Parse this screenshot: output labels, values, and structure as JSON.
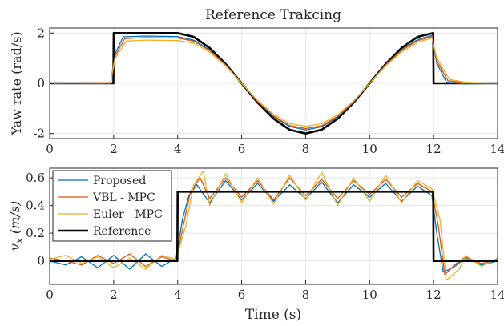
{
  "figure_title": "Reference Trakcing",
  "chart_data": [
    {
      "type": "line",
      "title": "Reference Trakcing",
      "xlabel": "",
      "ylabel": "Yaw rate (rad/s)",
      "xlim": [
        0,
        14
      ],
      "ylim": [
        -2.2,
        2.2
      ],
      "xticks": [
        0,
        2,
        4,
        6,
        8,
        10,
        12,
        14
      ],
      "yticks": [
        -2,
        0,
        2
      ],
      "grid": true,
      "legend": "none",
      "series": [
        {
          "name": "Reference",
          "color": "#000000",
          "x": [
            0,
            1.99,
            2.0,
            4.0,
            4.5,
            5.0,
            5.5,
            6.0,
            6.5,
            7.0,
            7.5,
            8.0,
            8.5,
            9.0,
            9.5,
            10.0,
            10.5,
            11.0,
            11.5,
            11.99,
            12.0,
            14.0
          ],
          "y": [
            0,
            0,
            2.0,
            2.0,
            1.85,
            1.41,
            0.77,
            0.0,
            -0.77,
            -1.41,
            -1.85,
            -2.0,
            -1.85,
            -1.41,
            -0.77,
            0.0,
            0.77,
            1.41,
            1.85,
            2.0,
            0,
            0
          ]
        },
        {
          "name": "Proposed",
          "color": "#0072BD",
          "x": [
            0,
            1.9,
            2.05,
            2.3,
            3.0,
            4.0,
            4.5,
            5.0,
            5.5,
            6.0,
            6.5,
            7.0,
            7.5,
            8.0,
            8.5,
            9.0,
            9.5,
            10.0,
            10.5,
            11.0,
            11.5,
            11.95,
            12.1,
            12.4,
            13.0,
            14.0
          ],
          "y": [
            0.02,
            -0.02,
            1.2,
            1.85,
            1.88,
            1.86,
            1.72,
            1.33,
            0.74,
            0.0,
            -0.73,
            -1.33,
            -1.72,
            -1.86,
            -1.73,
            -1.34,
            -0.75,
            0.0,
            0.74,
            1.33,
            1.74,
            1.9,
            0.8,
            0.05,
            -0.03,
            0.0
          ]
        },
        {
          "name": "VBL - MPC",
          "color": "#D95319",
          "x": [
            0,
            1.9,
            2.05,
            2.35,
            3.0,
            4.0,
            4.5,
            5.0,
            5.5,
            6.0,
            6.5,
            7.0,
            7.5,
            8.0,
            8.5,
            9.0,
            9.5,
            10.0,
            10.5,
            11.0,
            11.5,
            11.95,
            12.1,
            12.45,
            13.0,
            14.0
          ],
          "y": [
            0.0,
            0.03,
            1.1,
            1.78,
            1.82,
            1.8,
            1.68,
            1.3,
            0.72,
            0.0,
            -0.71,
            -1.3,
            -1.68,
            -1.8,
            -1.69,
            -1.31,
            -0.73,
            0.0,
            0.72,
            1.31,
            1.7,
            1.86,
            0.9,
            0.1,
            0.02,
            0.0
          ]
        },
        {
          "name": "Euler - MPC",
          "color": "#EDB120",
          "x": [
            0,
            1.9,
            2.05,
            2.4,
            3.0,
            4.0,
            4.5,
            5.0,
            5.5,
            6.0,
            6.5,
            7.0,
            7.5,
            8.0,
            8.5,
            9.0,
            9.5,
            10.0,
            10.5,
            11.0,
            11.5,
            11.95,
            12.1,
            12.5,
            13.0,
            14.0
          ],
          "y": [
            0.0,
            0.02,
            1.0,
            1.68,
            1.72,
            1.7,
            1.6,
            1.24,
            0.69,
            0.0,
            -0.68,
            -1.24,
            -1.6,
            -1.71,
            -1.61,
            -1.25,
            -0.7,
            0.0,
            0.69,
            1.25,
            1.63,
            1.8,
            1.0,
            0.15,
            0.04,
            0.0
          ]
        }
      ]
    },
    {
      "type": "line",
      "title": "",
      "xlabel": "Time (s)",
      "ylabel": "v_x (m/s)",
      "xlim": [
        0,
        14
      ],
      "ylim": [
        -0.17,
        0.67
      ],
      "xticks": [
        0,
        2,
        4,
        6,
        8,
        10,
        12,
        14
      ],
      "yticks": [
        0,
        0.2,
        0.4,
        0.6
      ],
      "grid": true,
      "legend": "top-left",
      "series": [
        {
          "name": "Proposed",
          "color": "#0072BD",
          "x": [
            0,
            0.5,
            1.0,
            1.5,
            2.0,
            2.5,
            3.0,
            3.5,
            3.95,
            4.15,
            4.35,
            4.6,
            5.0,
            5.5,
            6.0,
            6.5,
            7.0,
            7.5,
            8.0,
            8.5,
            9.0,
            9.5,
            10.0,
            10.5,
            11.0,
            11.5,
            11.95,
            12.1,
            12.3,
            12.6,
            13.0,
            13.5,
            14.0
          ],
          "y": [
            0.0,
            -0.03,
            0.03,
            -0.05,
            0.04,
            -0.06,
            0.05,
            -0.04,
            0.02,
            0.3,
            0.47,
            0.55,
            0.42,
            0.58,
            0.44,
            0.56,
            0.43,
            0.55,
            0.45,
            0.57,
            0.42,
            0.55,
            0.46,
            0.56,
            0.43,
            0.54,
            0.47,
            0.2,
            -0.08,
            -0.05,
            0.02,
            -0.03,
            0.0
          ]
        },
        {
          "name": "VBL - MPC",
          "color": "#D95319",
          "x": [
            0,
            0.5,
            1.0,
            1.5,
            2.0,
            2.5,
            3.0,
            3.5,
            3.95,
            4.2,
            4.4,
            4.7,
            5.0,
            5.5,
            6.0,
            6.5,
            7.0,
            7.5,
            8.0,
            8.5,
            9.0,
            9.5,
            10.0,
            10.5,
            11.0,
            11.5,
            11.95,
            12.15,
            12.35,
            12.7,
            13.0,
            13.5,
            14.0
          ],
          "y": [
            0.02,
            0.0,
            -0.03,
            0.04,
            -0.02,
            0.05,
            -0.04,
            0.03,
            0.0,
            0.28,
            0.5,
            0.6,
            0.45,
            0.6,
            0.46,
            0.58,
            0.44,
            0.6,
            0.47,
            0.59,
            0.45,
            0.58,
            0.48,
            0.59,
            0.46,
            0.56,
            0.5,
            0.25,
            -0.1,
            -0.02,
            0.03,
            -0.02,
            0.01
          ]
        },
        {
          "name": "Euler - MPC",
          "color": "#EDB120",
          "x": [
            0,
            0.5,
            1.0,
            1.5,
            2.0,
            2.5,
            3.0,
            3.5,
            3.95,
            4.25,
            4.5,
            4.8,
            5.0,
            5.5,
            6.0,
            6.5,
            7.0,
            7.5,
            8.0,
            8.5,
            9.0,
            9.5,
            10.0,
            10.5,
            11.0,
            11.5,
            11.95,
            12.2,
            12.4,
            12.8,
            13.0,
            13.5,
            14.0
          ],
          "y": [
            0.01,
            0.04,
            -0.02,
            0.03,
            -0.05,
            0.02,
            -0.06,
            0.04,
            0.01,
            0.25,
            0.55,
            0.65,
            0.4,
            0.63,
            0.42,
            0.6,
            0.41,
            0.62,
            0.44,
            0.64,
            0.4,
            0.6,
            0.43,
            0.62,
            0.42,
            0.58,
            0.52,
            0.3,
            -0.14,
            -0.06,
            0.04,
            -0.04,
            0.02
          ]
        },
        {
          "name": "Reference",
          "color": "#000000",
          "x": [
            0,
            3.99,
            4.0,
            11.99,
            12.0,
            14.0
          ],
          "y": [
            0,
            0,
            0.5,
            0.5,
            0,
            0
          ]
        }
      ]
    }
  ]
}
